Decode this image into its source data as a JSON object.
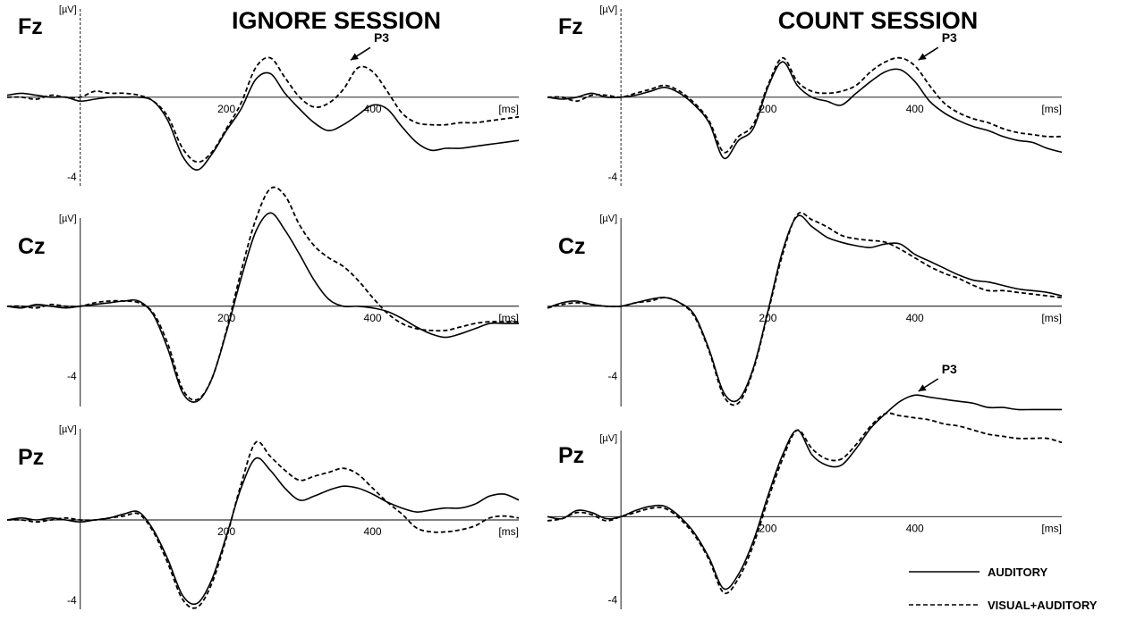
{
  "colors": {
    "line": "#000000",
    "background": "#ffffff"
  },
  "legend": {
    "placement": "bottom-right",
    "items": [
      {
        "label": "AUDITORY",
        "dash": "solid"
      },
      {
        "label": "VISUAL+AUDITORY",
        "dash": "dashed"
      }
    ]
  },
  "chart_data": [
    {
      "type": "line",
      "session": "IGNORE SESSION",
      "electrode": "Fz",
      "title": "IGNORE SESSION",
      "ylabel": "[µV]",
      "xlabel": "[ms]",
      "xlim": [
        -100,
        600
      ],
      "ylim": [
        -4.6,
        4.4
      ],
      "xticks": [
        200,
        400
      ],
      "yticks": [
        -4
      ],
      "grid": false,
      "series": [
        {
          "name": "AUDITORY",
          "dash": "solid",
          "x": [
            -100,
            -80,
            -60,
            -40,
            -20,
            0,
            20,
            40,
            60,
            80,
            100,
            120,
            140,
            160,
            180,
            200,
            220,
            240,
            260,
            280,
            300,
            320,
            340,
            360,
            380,
            400,
            420,
            440,
            460,
            480,
            500,
            520,
            540,
            560,
            580,
            600
          ],
          "y": [
            0.1,
            0.2,
            0.1,
            0,
            0,
            -0.2,
            -0.1,
            0,
            0,
            0,
            -0.2,
            -1.2,
            -3.0,
            -3.7,
            -2.9,
            -1.7,
            -0.6,
            0.9,
            1.2,
            0.2,
            -0.6,
            -1.3,
            -1.7,
            -1.4,
            -0.9,
            -0.4,
            -0.6,
            -1.5,
            -2.3,
            -2.7,
            -2.6,
            -2.6,
            -2.5,
            -2.4,
            -2.3,
            -2.2
          ]
        },
        {
          "name": "VISUAL+AUDITORY",
          "dash": "dashed",
          "x": [
            -100,
            -80,
            -60,
            -40,
            -20,
            0,
            20,
            40,
            60,
            80,
            100,
            120,
            140,
            160,
            180,
            200,
            220,
            240,
            260,
            280,
            300,
            320,
            340,
            360,
            380,
            400,
            420,
            440,
            460,
            480,
            500,
            520,
            540,
            560,
            580,
            600
          ],
          "y": [
            0,
            0,
            -0.1,
            0.1,
            0,
            0,
            0.3,
            0.2,
            0.2,
            0.1,
            -0.2,
            -1.0,
            -2.6,
            -3.3,
            -2.8,
            -1.6,
            -0.3,
            1.5,
            2.0,
            1.0,
            0,
            -0.5,
            -0.3,
            0.4,
            1.5,
            1.3,
            0.3,
            -0.8,
            -1.3,
            -1.4,
            -1.4,
            -1.3,
            -1.3,
            -1.2,
            -1.1,
            -1.0
          ]
        }
      ],
      "annotations": [
        {
          "text": "P3",
          "x": 365,
          "y": 1.8
        }
      ]
    },
    {
      "type": "line",
      "session": "IGNORE SESSION",
      "electrode": "Cz",
      "ylabel": "[µV]",
      "xlabel": "[ms]",
      "xlim": [
        -100,
        600
      ],
      "ylim": [
        -5.8,
        5.0
      ],
      "xticks": [
        200,
        400
      ],
      "yticks": [
        -4
      ],
      "grid": false,
      "series": [
        {
          "name": "AUDITORY",
          "dash": "solid",
          "x": [
            -100,
            -80,
            -60,
            -40,
            -20,
            0,
            20,
            40,
            60,
            80,
            100,
            120,
            140,
            160,
            180,
            200,
            220,
            240,
            260,
            280,
            300,
            320,
            340,
            360,
            380,
            400,
            420,
            440,
            460,
            480,
            500,
            520,
            540,
            560,
            580,
            600
          ],
          "y": [
            0,
            -0.1,
            0.1,
            0,
            -0.1,
            0,
            0.1,
            0.2,
            0.3,
            0.3,
            -0.5,
            -2.5,
            -5.0,
            -5.5,
            -4.2,
            -1.5,
            1.6,
            4.3,
            5.4,
            4.4,
            3.0,
            1.5,
            0.4,
            0,
            0,
            -0.1,
            -0.3,
            -0.7,
            -1.2,
            -1.6,
            -1.8,
            -1.6,
            -1.3,
            -1.0,
            -1.0,
            -1.0
          ]
        },
        {
          "name": "VISUAL+AUDITORY",
          "dash": "dashed",
          "x": [
            -100,
            -80,
            -60,
            -40,
            -20,
            0,
            20,
            40,
            60,
            80,
            100,
            120,
            140,
            160,
            180,
            200,
            220,
            240,
            260,
            280,
            300,
            320,
            340,
            360,
            380,
            400,
            420,
            440,
            460,
            480,
            500,
            520,
            540,
            560,
            580,
            600
          ],
          "y": [
            0,
            0,
            -0.1,
            0.1,
            0,
            0,
            0.2,
            0.3,
            0.3,
            0.2,
            -0.4,
            -2.2,
            -4.8,
            -5.4,
            -4.2,
            -1.4,
            2.0,
            5.0,
            6.8,
            6.4,
            4.7,
            3.5,
            2.8,
            2.3,
            1.5,
            0.5,
            -0.4,
            -1.0,
            -1.3,
            -1.4,
            -1.4,
            -1.2,
            -1.0,
            -0.9,
            -0.9,
            -0.9
          ]
        }
      ],
      "annotations": []
    },
    {
      "type": "line",
      "session": "IGNORE SESSION",
      "electrode": "Pz",
      "ylabel": "[µV]",
      "xlabel": "[ms]",
      "xlim": [
        -100,
        600
      ],
      "ylim": [
        -4.5,
        4.5
      ],
      "xticks": [
        200,
        400
      ],
      "yticks": [
        -4
      ],
      "grid": false,
      "series": [
        {
          "name": "AUDITORY",
          "dash": "solid",
          "x": [
            -100,
            -80,
            -60,
            -40,
            -20,
            0,
            20,
            40,
            60,
            80,
            100,
            120,
            140,
            160,
            180,
            200,
            220,
            240,
            260,
            280,
            300,
            320,
            340,
            360,
            380,
            400,
            420,
            440,
            460,
            480,
            500,
            520,
            540,
            560,
            580,
            600
          ],
          "y": [
            0,
            0.1,
            0,
            0.1,
            0,
            -0.1,
            0,
            0.1,
            0.3,
            0.4,
            -0.5,
            -2.0,
            -3.8,
            -4.2,
            -3.0,
            -0.8,
            1.6,
            3.1,
            2.5,
            1.6,
            1.0,
            1.2,
            1.5,
            1.7,
            1.6,
            1.3,
            0.9,
            0.6,
            0.4,
            0.5,
            0.6,
            0.6,
            0.8,
            1.2,
            1.3,
            1.0
          ]
        },
        {
          "name": "VISUAL+AUDITORY",
          "dash": "dashed",
          "x": [
            -100,
            -80,
            -60,
            -40,
            -20,
            0,
            20,
            40,
            60,
            80,
            100,
            120,
            140,
            160,
            180,
            200,
            220,
            240,
            260,
            280,
            300,
            320,
            340,
            360,
            380,
            400,
            420,
            440,
            460,
            480,
            500,
            520,
            540,
            560,
            580,
            600
          ],
          "y": [
            0,
            0,
            -0.1,
            0,
            0.1,
            0,
            0,
            0.1,
            0.2,
            0.3,
            -0.6,
            -2.2,
            -4.0,
            -4.4,
            -3.2,
            -0.9,
            1.8,
            3.9,
            3.2,
            2.5,
            2.0,
            2.2,
            2.4,
            2.6,
            2.3,
            1.6,
            0.9,
            0.3,
            -0.4,
            -0.6,
            -0.6,
            -0.5,
            -0.3,
            0.1,
            0.2,
            0.1
          ]
        }
      ],
      "annotations": []
    },
    {
      "type": "line",
      "session": "COUNT SESSION",
      "electrode": "Fz",
      "title": "COUNT SESSION",
      "ylabel": "[µV]",
      "xlabel": "[ms]",
      "xlim": [
        -100,
        600
      ],
      "ylim": [
        -4.6,
        4.4
      ],
      "xticks": [
        200,
        400
      ],
      "yticks": [
        -4
      ],
      "grid": false,
      "series": [
        {
          "name": "AUDITORY",
          "dash": "solid",
          "x": [
            -100,
            -80,
            -60,
            -40,
            -20,
            0,
            20,
            40,
            60,
            80,
            100,
            120,
            140,
            160,
            180,
            200,
            220,
            240,
            260,
            280,
            300,
            320,
            340,
            360,
            380,
            400,
            420,
            440,
            460,
            480,
            500,
            520,
            540,
            560,
            580,
            600
          ],
          "y": [
            0,
            -0.1,
            0,
            0.2,
            0,
            0,
            0.1,
            0.3,
            0.5,
            0.2,
            -0.4,
            -1.3,
            -3.1,
            -2.2,
            -1.6,
            0.5,
            1.8,
            0.6,
            0,
            -0.2,
            -0.4,
            0.2,
            0.8,
            1.3,
            1.4,
            0.8,
            -0.2,
            -0.8,
            -1.2,
            -1.5,
            -1.7,
            -2.0,
            -2.2,
            -2.3,
            -2.6,
            -2.8
          ]
        },
        {
          "name": "VISUAL+AUDITORY",
          "dash": "dashed",
          "x": [
            -100,
            -80,
            -60,
            -40,
            -20,
            0,
            20,
            40,
            60,
            80,
            100,
            120,
            140,
            160,
            180,
            200,
            220,
            240,
            260,
            280,
            300,
            320,
            340,
            360,
            380,
            400,
            420,
            440,
            460,
            480,
            500,
            520,
            540,
            560,
            580,
            600
          ],
          "y": [
            0,
            0,
            -0.2,
            0.1,
            0.1,
            0,
            0.2,
            0.4,
            0.6,
            0.3,
            -0.3,
            -1.2,
            -2.8,
            -2.0,
            -1.4,
            0.6,
            2.0,
            0.8,
            0.3,
            0.2,
            0.3,
            0.6,
            1.3,
            1.8,
            2.0,
            1.6,
            0.6,
            -0.3,
            -0.8,
            -1.1,
            -1.3,
            -1.6,
            -1.8,
            -1.9,
            -2.0,
            -2.0
          ]
        }
      ],
      "annotations": [
        {
          "text": "P3",
          "x": 400,
          "y": 1.8
        }
      ]
    },
    {
      "type": "line",
      "session": "COUNT SESSION",
      "electrode": "Cz",
      "ylabel": "[µV]",
      "xlabel": "[ms]",
      "xlim": [
        -100,
        600
      ],
      "ylim": [
        -5.8,
        5.0
      ],
      "xticks": [
        200,
        400
      ],
      "yticks": [
        -4
      ],
      "grid": false,
      "series": [
        {
          "name": "AUDITORY",
          "dash": "solid",
          "x": [
            -100,
            -80,
            -60,
            -40,
            -20,
            0,
            20,
            40,
            60,
            80,
            100,
            120,
            140,
            160,
            180,
            200,
            220,
            240,
            260,
            280,
            300,
            320,
            340,
            360,
            380,
            400,
            420,
            440,
            460,
            480,
            500,
            520,
            540,
            560,
            580,
            600
          ],
          "y": [
            -0.1,
            0.2,
            0.3,
            0.1,
            0,
            0,
            0.2,
            0.4,
            0.5,
            0.2,
            -0.5,
            -2.5,
            -5.0,
            -5.4,
            -3.6,
            -0.3,
            3.2,
            5.2,
            4.6,
            4.0,
            3.7,
            3.5,
            3.4,
            3.6,
            3.6,
            3.0,
            2.6,
            2.2,
            1.8,
            1.5,
            1.4,
            1.2,
            1.0,
            0.9,
            0.8,
            0.6
          ]
        },
        {
          "name": "VISUAL+AUDITORY",
          "dash": "dashed",
          "x": [
            -100,
            -80,
            -60,
            -40,
            -20,
            0,
            20,
            40,
            60,
            80,
            100,
            120,
            140,
            160,
            180,
            200,
            220,
            240,
            260,
            280,
            300,
            320,
            340,
            360,
            380,
            400,
            420,
            440,
            460,
            480,
            500,
            520,
            540,
            560,
            580,
            600
          ],
          "y": [
            -0.1,
            0.1,
            0.2,
            0.1,
            0,
            0,
            0.2,
            0.3,
            0.5,
            0.2,
            -0.6,
            -2.6,
            -5.2,
            -5.6,
            -3.7,
            -0.4,
            3.0,
            5.3,
            5.0,
            4.6,
            4.1,
            3.9,
            3.8,
            3.7,
            3.3,
            2.8,
            2.3,
            1.9,
            1.6,
            1.2,
            0.9,
            0.9,
            0.8,
            0.7,
            0.6,
            0.5
          ]
        }
      ],
      "annotations": []
    },
    {
      "type": "line",
      "session": "COUNT SESSION",
      "electrode": "Pz",
      "ylabel": "[µV]",
      "xlabel": "[ms]",
      "xlim": [
        -100,
        600
      ],
      "ylim": [
        -4.5,
        6.0
      ],
      "xticks": [
        200,
        400
      ],
      "yticks": [
        -4
      ],
      "grid": false,
      "series": [
        {
          "name": "AUDITORY",
          "dash": "solid",
          "x": [
            -100,
            -80,
            -60,
            -40,
            -20,
            0,
            20,
            40,
            60,
            80,
            100,
            120,
            140,
            160,
            180,
            200,
            220,
            240,
            260,
            280,
            300,
            320,
            340,
            360,
            380,
            400,
            420,
            440,
            460,
            480,
            500,
            520,
            540,
            560,
            580,
            600
          ],
          "y": [
            0,
            -0.1,
            0.3,
            0.2,
            -0.1,
            0,
            0.3,
            0.5,
            0.5,
            0,
            -0.8,
            -2.0,
            -3.5,
            -2.8,
            -1.2,
            1.0,
            3.0,
            4.2,
            3.0,
            2.5,
            2.5,
            3.3,
            4.3,
            5.0,
            5.6,
            5.9,
            5.8,
            5.7,
            5.6,
            5.5,
            5.3,
            5.3,
            5.2,
            5.2,
            5.2,
            5.2
          ]
        },
        {
          "name": "VISUAL+AUDITORY",
          "dash": "dashed",
          "x": [
            -100,
            -80,
            -60,
            -40,
            -20,
            0,
            20,
            40,
            60,
            80,
            100,
            120,
            140,
            160,
            180,
            200,
            220,
            240,
            260,
            280,
            300,
            320,
            340,
            360,
            380,
            400,
            420,
            440,
            460,
            480,
            500,
            520,
            540,
            560,
            580,
            600
          ],
          "y": [
            -0.2,
            -0.1,
            0.2,
            0.1,
            -0.2,
            0,
            0.2,
            0.4,
            0.4,
            -0.1,
            -0.9,
            -2.1,
            -3.7,
            -3.0,
            -1.4,
            0.8,
            2.8,
            4.2,
            3.3,
            2.8,
            2.8,
            3.5,
            4.4,
            5.0,
            4.9,
            4.8,
            4.7,
            4.5,
            4.4,
            4.2,
            4.0,
            3.9,
            3.8,
            3.8,
            3.8,
            3.6
          ]
        }
      ],
      "annotations": [
        {
          "text": "P3",
          "x": 400,
          "y": 6.0
        }
      ]
    }
  ]
}
